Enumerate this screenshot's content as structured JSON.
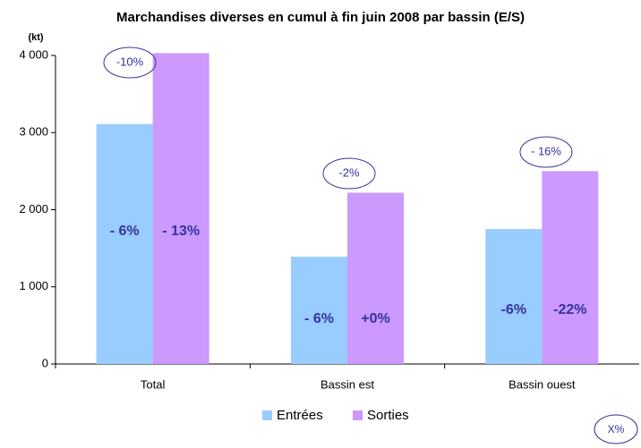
{
  "chart_data": {
    "type": "bar",
    "title": "Marchandises diverses en cumul à fin juin 2008 par bassin (E/S)",
    "y_label": "(kt)",
    "categories": [
      "Total",
      "Bassin est",
      "Bassin ouest"
    ],
    "series": [
      {
        "name": "Entrées",
        "color": "#99ccff",
        "values": [
          3110,
          1390,
          1750
        ],
        "annotations": [
          "- 6%",
          "- 6%",
          "-6%"
        ]
      },
      {
        "name": "Sorties",
        "color": "#cc99ff",
        "values": [
          4030,
          2220,
          2500
        ],
        "annotations": [
          "- 13%",
          "+0%",
          "-22%"
        ]
      }
    ],
    "category_annotations": [
      "-10%",
      "-2%",
      "- 16%"
    ],
    "legend_note": "X%",
    "ylim": [
      0,
      4000
    ],
    "yticks": [
      0,
      {
        "value": 1000,
        "label": "1 000"
      },
      {
        "value": 2000,
        "label": "2 000"
      },
      {
        "value": 3000,
        "label": "3 000"
      },
      {
        "value": 4000,
        "label": "4 000"
      }
    ],
    "legend": "bottom"
  }
}
